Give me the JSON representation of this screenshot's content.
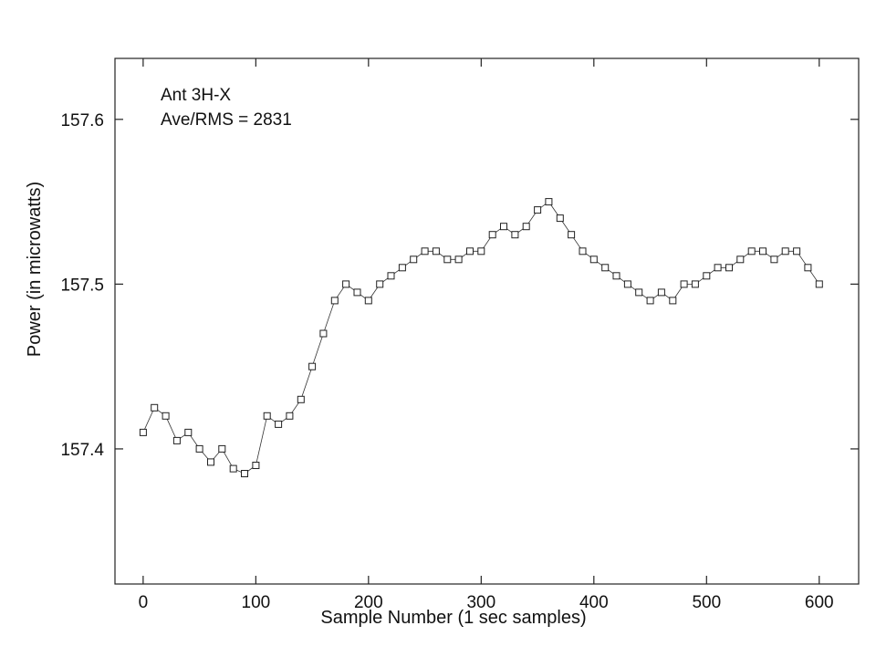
{
  "chart_data": {
    "type": "scatter",
    "title": "",
    "xlabel": "Sample Number (1 sec samples)",
    "ylabel": "Power (in microwatts)",
    "xlim": [
      -25,
      635
    ],
    "ylim": [
      157.318,
      157.637
    ],
    "xticks": [
      0,
      100,
      200,
      300,
      400,
      500,
      600
    ],
    "yticks": [
      157.4,
      157.5,
      157.6
    ],
    "ytick_labels": [
      "157.4",
      "157.5",
      "157.6"
    ],
    "annotations": [
      "Ant 3H-X",
      "Ave/RMS = 2831"
    ],
    "grid": false,
    "marker": "open-square",
    "connected": true,
    "series": [
      {
        "x": [
          0,
          10,
          20,
          30,
          40,
          50,
          60,
          70,
          80,
          90,
          100,
          110,
          120,
          130,
          140,
          150,
          160,
          170,
          180,
          190,
          200,
          210,
          220,
          230,
          240,
          250,
          260,
          270,
          280,
          290,
          300,
          310,
          320,
          330,
          340,
          350,
          360,
          370,
          380,
          390,
          400,
          410,
          420,
          430,
          440,
          450,
          460,
          470,
          480,
          490,
          500,
          510,
          520,
          530,
          540,
          550,
          560,
          570,
          580,
          590,
          600
        ],
        "y": [
          157.41,
          157.425,
          157.42,
          157.405,
          157.41,
          157.4,
          157.392,
          157.4,
          157.388,
          157.385,
          157.39,
          157.42,
          157.415,
          157.42,
          157.43,
          157.45,
          157.47,
          157.49,
          157.5,
          157.495,
          157.49,
          157.5,
          157.505,
          157.51,
          157.515,
          157.52,
          157.52,
          157.515,
          157.515,
          157.52,
          157.52,
          157.53,
          157.535,
          157.53,
          157.535,
          157.545,
          157.55,
          157.54,
          157.53,
          157.52,
          157.515,
          157.51,
          157.505,
          157.5,
          157.495,
          157.49,
          157.495,
          157.49,
          157.5,
          157.5,
          157.505,
          157.51,
          157.51,
          157.515,
          157.52,
          157.52,
          157.515,
          157.52,
          157.52,
          157.51,
          157.5
        ]
      }
    ]
  }
}
